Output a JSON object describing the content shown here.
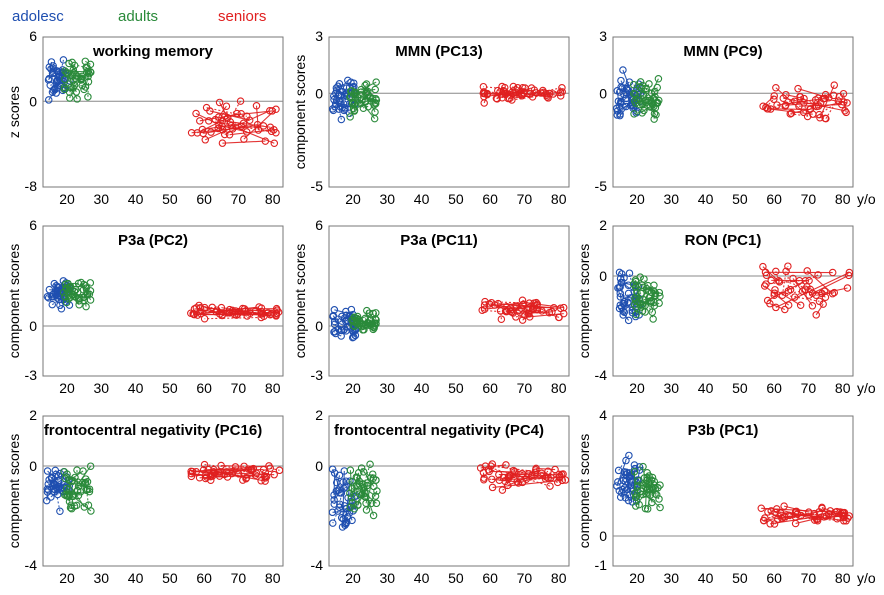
{
  "legend": {
    "adolesc": {
      "label": "adolesc",
      "color": "#1f4fb0"
    },
    "adults": {
      "label": "adults",
      "color": "#2a8a3a"
    },
    "seniors": {
      "label": "seniors",
      "color": "#e02020"
    }
  },
  "x_axis": {
    "ticks": [
      20,
      30,
      40,
      50,
      60,
      70,
      80
    ],
    "tick_labels": [
      "20",
      "30",
      "40",
      "50",
      "60",
      "70",
      "80"
    ],
    "unit_label": "y/o",
    "xlim": [
      13,
      83
    ]
  },
  "chart_data": [
    {
      "type": "scatter",
      "title": "working memory",
      "ylabel": "z scores",
      "ylim": [
        -8,
        6
      ],
      "yticks": [
        6,
        0,
        -8
      ],
      "groups": {
        "adolesc": {
          "age_range": [
            14,
            21
          ],
          "y_center": 2,
          "y_spread": 2.5
        },
        "adults": {
          "age_range": [
            19,
            27
          ],
          "y_center": 2,
          "y_spread": 2.5
        },
        "seniors": {
          "age_range": [
            56,
            82
          ],
          "y_center": -2,
          "y_spread": 3
        }
      }
    },
    {
      "type": "scatter",
      "title": "MMN (PC13)",
      "ylabel": "component scores",
      "ylim": [
        -5,
        3
      ],
      "yticks": [
        3,
        0,
        -5
      ],
      "groups": {
        "adolesc": {
          "age_range": [
            14,
            21
          ],
          "y_center": -0.3,
          "y_spread": 1.5
        },
        "adults": {
          "age_range": [
            19,
            27
          ],
          "y_center": -0.3,
          "y_spread": 1.4
        },
        "seniors": {
          "age_range": [
            56,
            82
          ],
          "y_center": 0,
          "y_spread": 0.6
        }
      }
    },
    {
      "type": "scatter",
      "title": "MMN (PC9)",
      "ylabel": "",
      "ylim": [
        -5,
        3
      ],
      "yticks": [
        3,
        0,
        -5
      ],
      "groups": {
        "adolesc": {
          "age_range": [
            14,
            21
          ],
          "y_center": -0.2,
          "y_spread": 1.8
        },
        "adults": {
          "age_range": [
            19,
            27
          ],
          "y_center": -0.3,
          "y_spread": 1.6
        },
        "seniors": {
          "age_range": [
            56,
            82
          ],
          "y_center": -0.5,
          "y_spread": 1.2
        }
      }
    },
    {
      "type": "scatter",
      "title": "P3a (PC2)",
      "ylabel": "component scores",
      "ylim": [
        -3,
        6
      ],
      "yticks": [
        6,
        0,
        -3
      ],
      "groups": {
        "adolesc": {
          "age_range": [
            14,
            21
          ],
          "y_center": 2,
          "y_spread": 1.2
        },
        "adults": {
          "age_range": [
            19,
            27
          ],
          "y_center": 2,
          "y_spread": 1
        },
        "seniors": {
          "age_range": [
            56,
            82
          ],
          "y_center": 0.8,
          "y_spread": 0.6
        }
      }
    },
    {
      "type": "scatter",
      "title": "P3a (PC11)",
      "ylabel": "component scores",
      "ylim": [
        -3,
        6
      ],
      "yticks": [
        6,
        0,
        -3
      ],
      "groups": {
        "adolesc": {
          "age_range": [
            14,
            21
          ],
          "y_center": 0,
          "y_spread": 1.3
        },
        "adults": {
          "age_range": [
            19,
            27
          ],
          "y_center": 0.2,
          "y_spread": 0.9
        },
        "seniors": {
          "age_range": [
            56,
            82
          ],
          "y_center": 1,
          "y_spread": 0.9
        }
      }
    },
    {
      "type": "scatter",
      "title": "RON (PC1)",
      "ylabel": "component scores",
      "ylim": [
        -4,
        2
      ],
      "yticks": [
        2,
        0,
        -4
      ],
      "groups": {
        "adolesc": {
          "age_range": [
            14,
            21
          ],
          "y_center": -0.8,
          "y_spread": 1.5
        },
        "adults": {
          "age_range": [
            19,
            27
          ],
          "y_center": -0.9,
          "y_spread": 1.2
        },
        "seniors": {
          "age_range": [
            56,
            82
          ],
          "y_center": -0.6,
          "y_spread": 1.2
        }
      }
    },
    {
      "type": "scatter",
      "title": "frontocentral negativity (PC16)",
      "ylabel": "component scores",
      "ylim": [
        -4,
        2
      ],
      "yticks": [
        2,
        0,
        -4
      ],
      "groups": {
        "adolesc": {
          "age_range": [
            14,
            21
          ],
          "y_center": -0.8,
          "y_spread": 1.3
        },
        "adults": {
          "age_range": [
            19,
            27
          ],
          "y_center": -0.9,
          "y_spread": 1.1
        },
        "seniors": {
          "age_range": [
            56,
            82
          ],
          "y_center": -0.3,
          "y_spread": 0.5
        }
      }
    },
    {
      "type": "scatter",
      "title": "frontocentral negativity (PC4)",
      "ylabel": "",
      "ylim": [
        -4,
        2
      ],
      "yticks": [
        2,
        0,
        -4
      ],
      "groups": {
        "adolesc": {
          "age_range": [
            14,
            21
          ],
          "y_center": -1.3,
          "y_spread": 1.7
        },
        "adults": {
          "age_range": [
            19,
            27
          ],
          "y_center": -1,
          "y_spread": 1.5
        },
        "seniors": {
          "age_range": [
            56,
            82
          ],
          "y_center": -0.4,
          "y_spread": 0.8
        }
      }
    },
    {
      "type": "scatter",
      "title": "P3b (PC1)",
      "ylabel": "component scores",
      "ylim": [
        -1,
        4
      ],
      "yticks": [
        4,
        0,
        -1
      ],
      "groups": {
        "adolesc": {
          "age_range": [
            14,
            21
          ],
          "y_center": 1.8,
          "y_spread": 1.2
        },
        "adults": {
          "age_range": [
            19,
            27
          ],
          "y_center": 1.6,
          "y_spread": 0.9
        },
        "seniors": {
          "age_range": [
            56,
            82
          ],
          "y_center": 0.7,
          "y_spread": 0.4
        }
      }
    }
  ]
}
